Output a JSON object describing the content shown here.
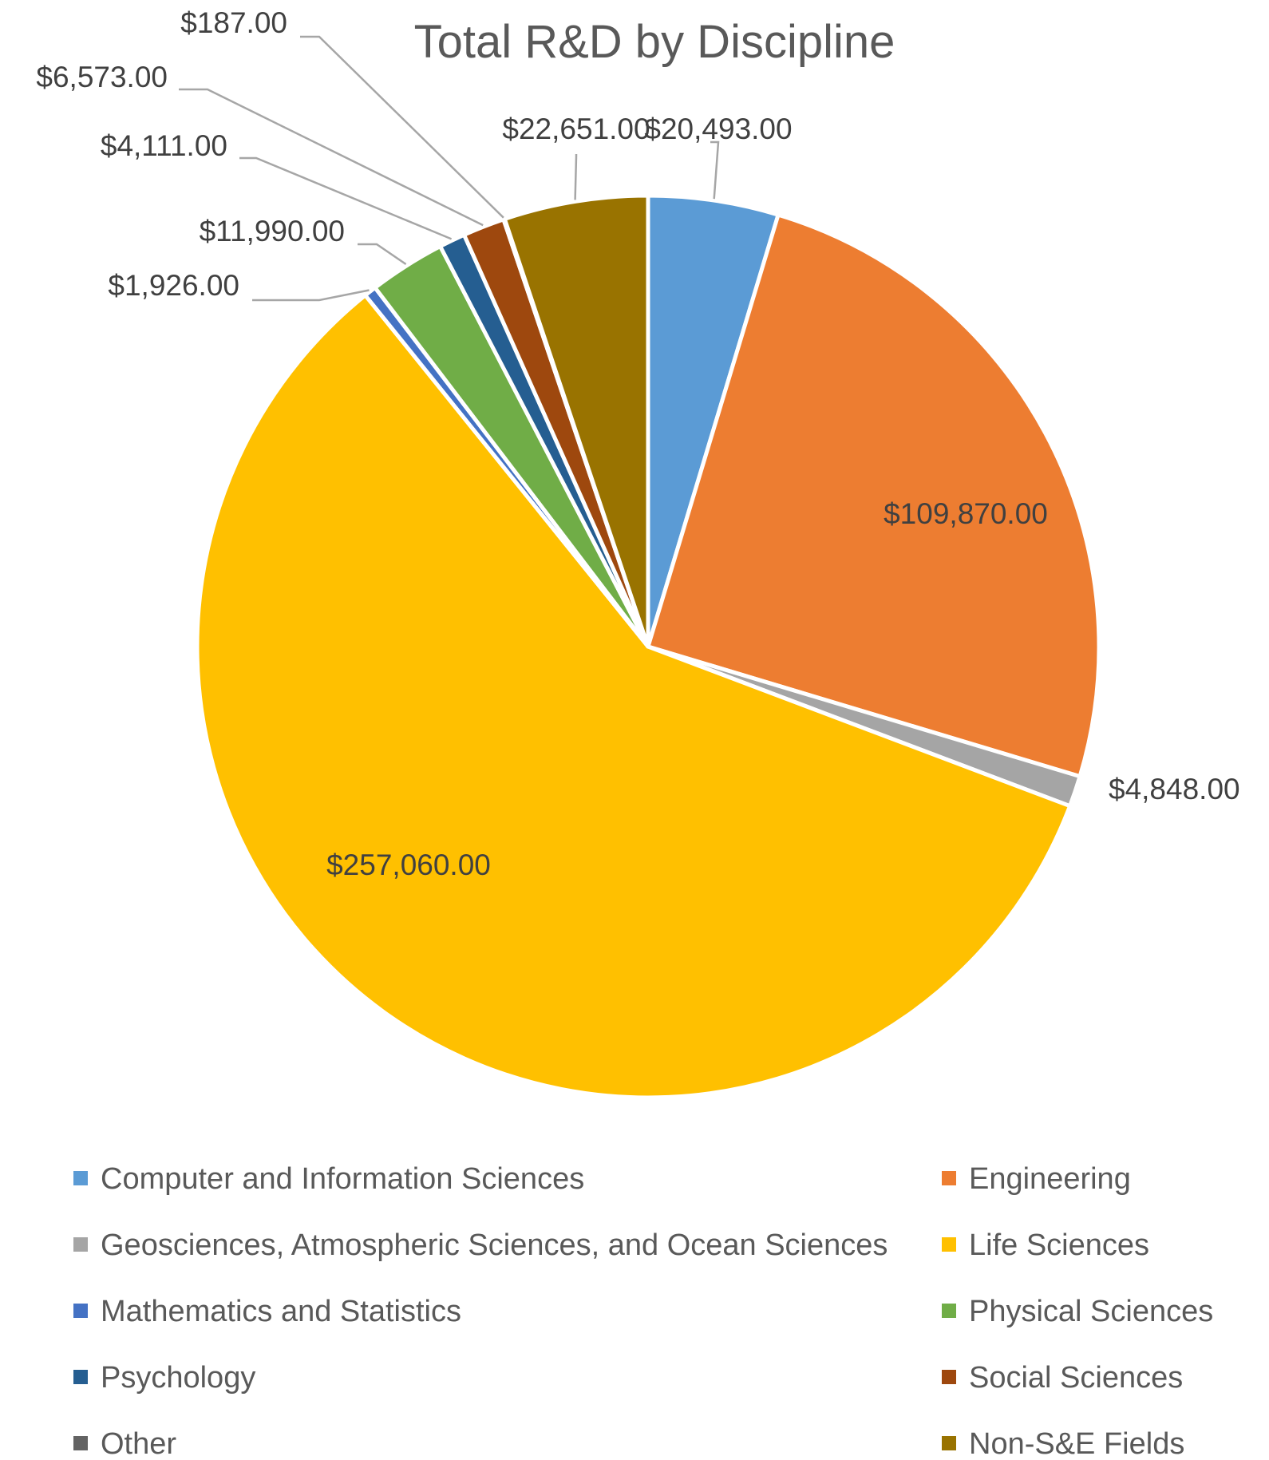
{
  "chart_data": {
    "type": "pie",
    "title": "Total R&D by Discipline",
    "categories": [
      "Computer and Information Sciences",
      "Engineering",
      "Geosciences, Atmospheric Sciences, and Ocean Sciences",
      "Life Sciences",
      "Mathematics and Statistics",
      "Physical Sciences",
      "Psychology",
      "Social Sciences",
      "Other",
      "Non-S&E Fields"
    ],
    "values": [
      20493,
      109870,
      4848,
      257060,
      1926,
      11990,
      4111,
      6573,
      187,
      22651
    ],
    "data_labels": [
      "$20,493.00",
      "$109,870.00",
      "$4,848.00",
      "$257,060.00",
      "$1,926.00",
      "$11,990.00",
      "$4,111.00",
      "$6,573.00",
      "$187.00",
      "$22,651.00"
    ],
    "colors": [
      "#5b9bd5",
      "#ed7d31",
      "#a5a5a5",
      "#ffc000",
      "#4472c4",
      "#70ad47",
      "#255e91",
      "#9e480e",
      "#636363",
      "#997300"
    ],
    "legend": {
      "position": "bottom",
      "columns": 2
    },
    "start_angle": "12 o'clock",
    "direction": "clockwise"
  }
}
